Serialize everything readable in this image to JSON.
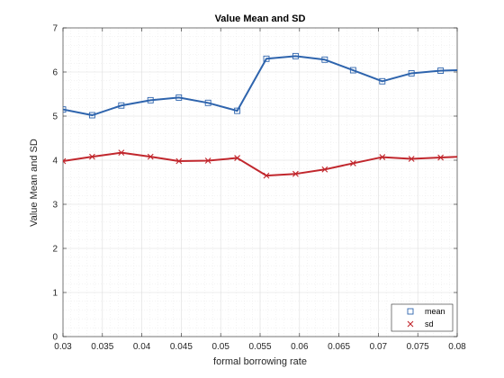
{
  "chart_data": {
    "type": "line",
    "title": "Value Mean and SD",
    "xlabel": "formal borrowing rate",
    "ylabel": "Value Mean and SD",
    "xlim": [
      0.03,
      0.08
    ],
    "ylim": [
      0,
      7
    ],
    "x_ticks": [
      "0.03",
      "0.035",
      "0.04",
      "0.045",
      "0.05",
      "0.055",
      "0.06",
      "0.065",
      "0.07",
      "0.075",
      "0.08"
    ],
    "y_ticks": [
      "0",
      "1",
      "2",
      "3",
      "4",
      "5",
      "6",
      "7"
    ],
    "grid": true,
    "minor_grid": true,
    "legend_position": "bottom-right",
    "x": [
      0.03,
      0.0337,
      0.0374,
      0.0411,
      0.0447,
      0.0484,
      0.0521,
      0.0558,
      0.0595,
      0.0632,
      0.0668,
      0.0705,
      0.0742,
      0.0779,
      0.0816
    ],
    "series": [
      {
        "name": "mean",
        "color": "#2e64ad",
        "marker": "square",
        "values": [
          5.15,
          5.02,
          5.24,
          5.36,
          5.42,
          5.3,
          5.12,
          6.3,
          6.36,
          6.28,
          6.04,
          5.79,
          5.97,
          6.03,
          6.05
        ]
      },
      {
        "name": "sd",
        "color": "#c1272d",
        "marker": "x",
        "values": [
          3.98,
          4.08,
          4.17,
          4.08,
          3.98,
          3.99,
          4.05,
          3.65,
          3.69,
          3.79,
          3.93,
          4.07,
          4.03,
          4.06,
          4.09
        ]
      }
    ]
  }
}
